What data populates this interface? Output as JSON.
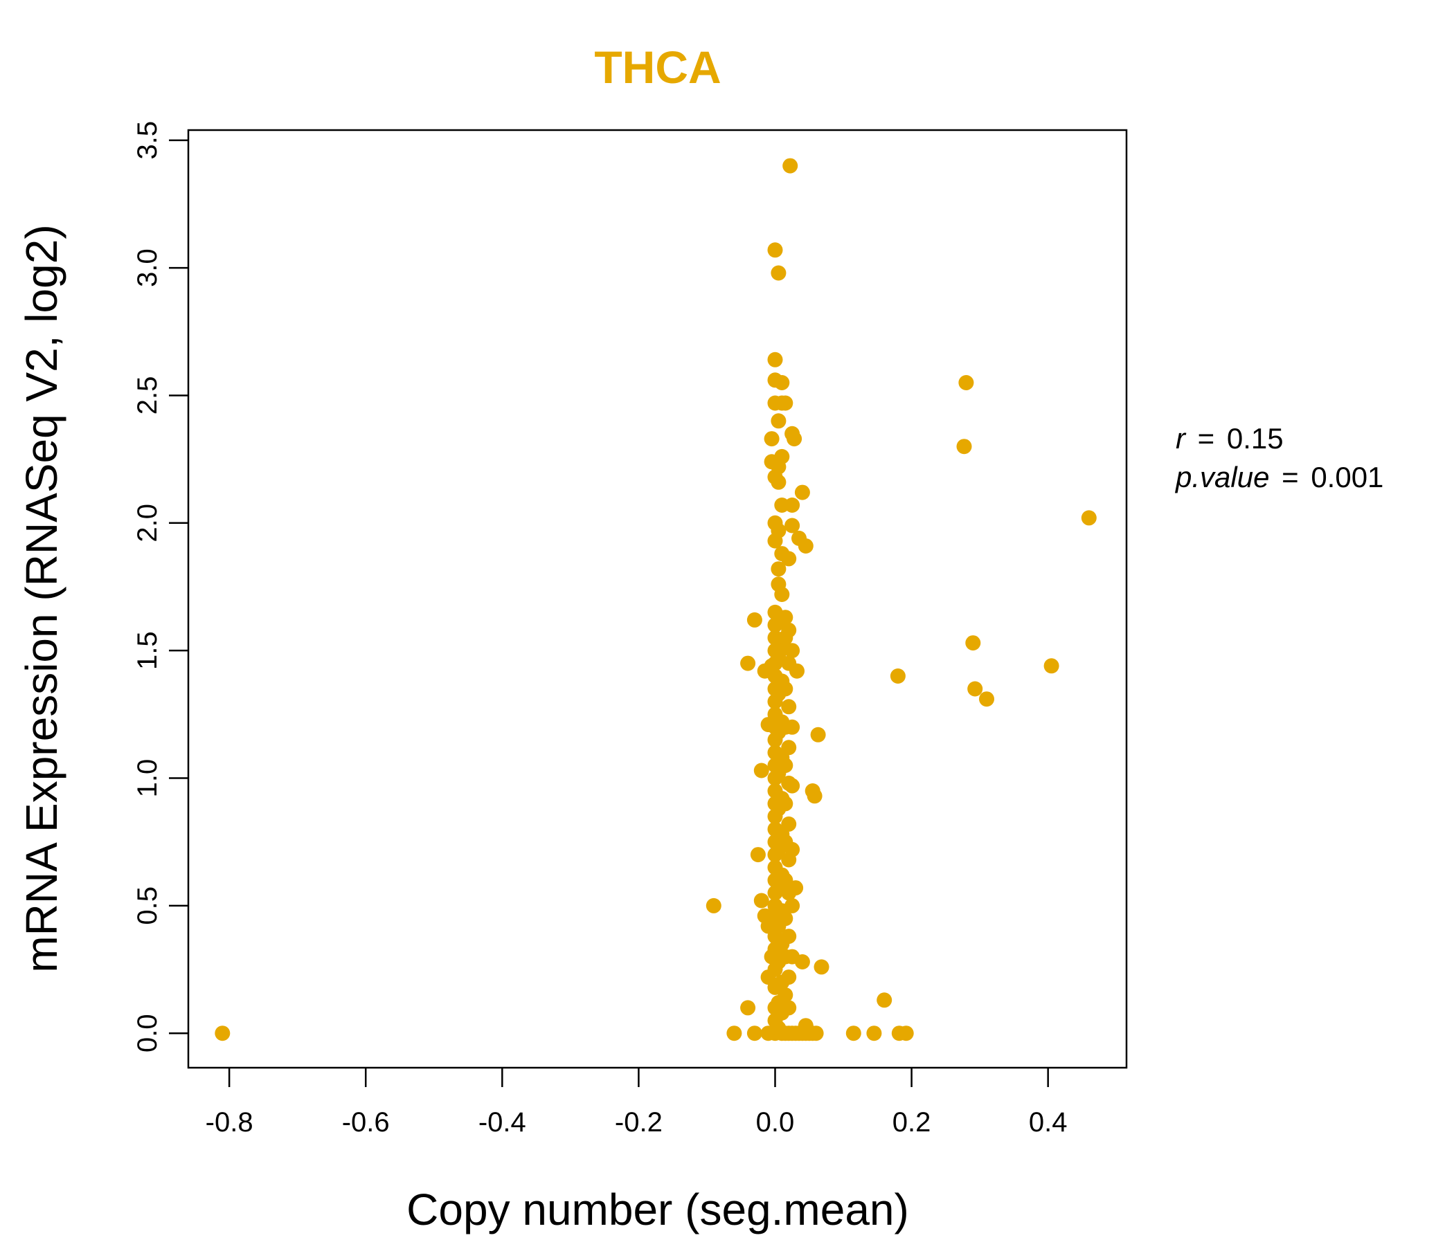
{
  "chart_data": {
    "type": "scatter",
    "title": "THCA",
    "xlabel": "Copy number (seg.mean)",
    "ylabel": "mRNA Expression (RNASeq V2, log2)",
    "xlim": [
      -0.86,
      0.515
    ],
    "ylim": [
      -0.135,
      3.54
    ],
    "xticks": [
      -0.8,
      -0.6,
      -0.4,
      -0.2,
      0.0,
      0.2,
      0.4
    ],
    "xtick_labels": [
      "-0.8",
      "-0.6",
      "-0.4",
      "-0.2",
      "0.0",
      "0.2",
      "0.4"
    ],
    "yticks": [
      0.0,
      0.5,
      1.0,
      1.5,
      2.0,
      2.5,
      3.0,
      3.5
    ],
    "ytick_labels": [
      "0.0",
      "0.5",
      "1.0",
      "1.5",
      "2.0",
      "2.5",
      "3.0",
      "3.5"
    ],
    "grid": false,
    "color": "#E6A800",
    "stats": {
      "r_label": "r",
      "r_value": "0.15",
      "p_label": "p.value",
      "p_value": "0.001"
    },
    "points": [
      {
        "x": -0.81,
        "y": 0.0
      },
      {
        "x": -0.09,
        "y": 0.5
      },
      {
        "x": -0.06,
        "y": 0.0
      },
      {
        "x": -0.04,
        "y": 0.1
      },
      {
        "x": -0.04,
        "y": 1.45
      },
      {
        "x": -0.03,
        "y": 0.0
      },
      {
        "x": -0.03,
        "y": 1.62
      },
      {
        "x": -0.025,
        "y": 0.7
      },
      {
        "x": -0.02,
        "y": 0.52
      },
      {
        "x": -0.02,
        "y": 1.03
      },
      {
        "x": -0.015,
        "y": 1.42
      },
      {
        "x": -0.015,
        "y": 0.46
      },
      {
        "x": -0.01,
        "y": 1.21
      },
      {
        "x": -0.01,
        "y": 0.0
      },
      {
        "x": -0.01,
        "y": 0.42
      },
      {
        "x": -0.01,
        "y": 0.22
      },
      {
        "x": -0.005,
        "y": 0.3
      },
      {
        "x": -0.005,
        "y": 1.44
      },
      {
        "x": -0.005,
        "y": 2.24
      },
      {
        "x": -0.005,
        "y": 2.33
      },
      {
        "x": 0.0,
        "y": 0.0
      },
      {
        "x": 0.0,
        "y": 0.05
      },
      {
        "x": 0.0,
        "y": 0.1
      },
      {
        "x": 0.0,
        "y": 0.18
      },
      {
        "x": 0.0,
        "y": 0.25
      },
      {
        "x": 0.0,
        "y": 0.33
      },
      {
        "x": 0.0,
        "y": 0.38
      },
      {
        "x": 0.0,
        "y": 0.45
      },
      {
        "x": 0.0,
        "y": 0.5
      },
      {
        "x": 0.0,
        "y": 0.55
      },
      {
        "x": 0.0,
        "y": 0.6
      },
      {
        "x": 0.0,
        "y": 0.65
      },
      {
        "x": 0.0,
        "y": 0.7
      },
      {
        "x": 0.0,
        "y": 0.75
      },
      {
        "x": 0.0,
        "y": 0.8
      },
      {
        "x": 0.0,
        "y": 0.85
      },
      {
        "x": 0.0,
        "y": 0.9
      },
      {
        "x": 0.0,
        "y": 0.95
      },
      {
        "x": 0.0,
        "y": 1.0
      },
      {
        "x": 0.0,
        "y": 1.05
      },
      {
        "x": 0.0,
        "y": 1.1
      },
      {
        "x": 0.0,
        "y": 1.15
      },
      {
        "x": 0.0,
        "y": 1.2
      },
      {
        "x": 0.0,
        "y": 1.25
      },
      {
        "x": 0.0,
        "y": 1.3
      },
      {
        "x": 0.0,
        "y": 1.35
      },
      {
        "x": 0.0,
        "y": 1.4
      },
      {
        "x": 0.0,
        "y": 1.45
      },
      {
        "x": 0.0,
        "y": 1.5
      },
      {
        "x": 0.0,
        "y": 1.55
      },
      {
        "x": 0.0,
        "y": 1.6
      },
      {
        "x": 0.0,
        "y": 1.65
      },
      {
        "x": 0.0,
        "y": 1.93
      },
      {
        "x": 0.0,
        "y": 2.0
      },
      {
        "x": 0.0,
        "y": 2.18
      },
      {
        "x": 0.0,
        "y": 2.47
      },
      {
        "x": 0.0,
        "y": 2.56
      },
      {
        "x": 0.0,
        "y": 2.64
      },
      {
        "x": 0.0,
        "y": 3.07
      },
      {
        "x": 0.005,
        "y": 0.02
      },
      {
        "x": 0.005,
        "y": 0.12
      },
      {
        "x": 0.005,
        "y": 0.28
      },
      {
        "x": 0.005,
        "y": 0.42
      },
      {
        "x": 0.005,
        "y": 0.58
      },
      {
        "x": 0.005,
        "y": 0.72
      },
      {
        "x": 0.005,
        "y": 0.88
      },
      {
        "x": 0.005,
        "y": 1.02
      },
      {
        "x": 0.005,
        "y": 1.18
      },
      {
        "x": 0.005,
        "y": 1.33
      },
      {
        "x": 0.005,
        "y": 1.48
      },
      {
        "x": 0.005,
        "y": 1.62
      },
      {
        "x": 0.005,
        "y": 1.76
      },
      {
        "x": 0.005,
        "y": 1.82
      },
      {
        "x": 0.005,
        "y": 1.97
      },
      {
        "x": 0.005,
        "y": 2.16
      },
      {
        "x": 0.005,
        "y": 2.22
      },
      {
        "x": 0.005,
        "y": 2.4
      },
      {
        "x": 0.005,
        "y": 2.98
      },
      {
        "x": 0.01,
        "y": 0.0
      },
      {
        "x": 0.01,
        "y": 0.08
      },
      {
        "x": 0.01,
        "y": 0.2
      },
      {
        "x": 0.01,
        "y": 0.35
      },
      {
        "x": 0.01,
        "y": 0.48
      },
      {
        "x": 0.01,
        "y": 0.62
      },
      {
        "x": 0.01,
        "y": 0.78
      },
      {
        "x": 0.01,
        "y": 0.92
      },
      {
        "x": 0.01,
        "y": 1.08
      },
      {
        "x": 0.01,
        "y": 1.22
      },
      {
        "x": 0.01,
        "y": 1.38
      },
      {
        "x": 0.01,
        "y": 1.52
      },
      {
        "x": 0.01,
        "y": 1.72
      },
      {
        "x": 0.01,
        "y": 1.88
      },
      {
        "x": 0.01,
        "y": 2.07
      },
      {
        "x": 0.01,
        "y": 2.26
      },
      {
        "x": 0.01,
        "y": 2.47
      },
      {
        "x": 0.01,
        "y": 2.55
      },
      {
        "x": 0.015,
        "y": 0.0
      },
      {
        "x": 0.015,
        "y": 0.15
      },
      {
        "x": 0.015,
        "y": 0.3
      },
      {
        "x": 0.015,
        "y": 0.45
      },
      {
        "x": 0.015,
        "y": 0.6
      },
      {
        "x": 0.015,
        "y": 0.75
      },
      {
        "x": 0.015,
        "y": 0.9
      },
      {
        "x": 0.015,
        "y": 1.05
      },
      {
        "x": 0.015,
        "y": 1.2
      },
      {
        "x": 0.015,
        "y": 1.35
      },
      {
        "x": 0.015,
        "y": 1.55
      },
      {
        "x": 0.015,
        "y": 1.63
      },
      {
        "x": 0.015,
        "y": 2.47
      },
      {
        "x": 0.02,
        "y": 0.0
      },
      {
        "x": 0.02,
        "y": 0.1
      },
      {
        "x": 0.02,
        "y": 0.22
      },
      {
        "x": 0.02,
        "y": 0.38
      },
      {
        "x": 0.02,
        "y": 0.55
      },
      {
        "x": 0.02,
        "y": 0.68
      },
      {
        "x": 0.02,
        "y": 0.82
      },
      {
        "x": 0.02,
        "y": 0.98
      },
      {
        "x": 0.02,
        "y": 1.12
      },
      {
        "x": 0.02,
        "y": 1.28
      },
      {
        "x": 0.02,
        "y": 1.45
      },
      {
        "x": 0.02,
        "y": 1.58
      },
      {
        "x": 0.02,
        "y": 1.86
      },
      {
        "x": 0.022,
        "y": 3.4
      },
      {
        "x": 0.025,
        "y": 0.0
      },
      {
        "x": 0.025,
        "y": 0.3
      },
      {
        "x": 0.025,
        "y": 0.5
      },
      {
        "x": 0.025,
        "y": 0.72
      },
      {
        "x": 0.025,
        "y": 0.97
      },
      {
        "x": 0.025,
        "y": 1.2
      },
      {
        "x": 0.025,
        "y": 1.5
      },
      {
        "x": 0.025,
        "y": 1.99
      },
      {
        "x": 0.025,
        "y": 2.07
      },
      {
        "x": 0.025,
        "y": 2.35
      },
      {
        "x": 0.028,
        "y": 2.33
      },
      {
        "x": 0.03,
        "y": 0.0
      },
      {
        "x": 0.03,
        "y": 0.57
      },
      {
        "x": 0.032,
        "y": 1.42
      },
      {
        "x": 0.035,
        "y": 1.94
      },
      {
        "x": 0.035,
        "y": 0.0
      },
      {
        "x": 0.04,
        "y": 0.0
      },
      {
        "x": 0.04,
        "y": 0.28
      },
      {
        "x": 0.04,
        "y": 2.12
      },
      {
        "x": 0.045,
        "y": 0.0
      },
      {
        "x": 0.045,
        "y": 0.03
      },
      {
        "x": 0.045,
        "y": 1.91
      },
      {
        "x": 0.05,
        "y": 0.0
      },
      {
        "x": 0.055,
        "y": 0.0
      },
      {
        "x": 0.055,
        "y": 0.95
      },
      {
        "x": 0.058,
        "y": 0.93
      },
      {
        "x": 0.06,
        "y": 0.0
      },
      {
        "x": 0.063,
        "y": 1.17
      },
      {
        "x": 0.068,
        "y": 0.26
      },
      {
        "x": 0.115,
        "y": 0.0
      },
      {
        "x": 0.145,
        "y": 0.0
      },
      {
        "x": 0.16,
        "y": 0.13
      },
      {
        "x": 0.18,
        "y": 1.4
      },
      {
        "x": 0.182,
        "y": 0.0
      },
      {
        "x": 0.192,
        "y": 0.0
      },
      {
        "x": 0.277,
        "y": 2.3
      },
      {
        "x": 0.28,
        "y": 2.55
      },
      {
        "x": 0.29,
        "y": 1.53
      },
      {
        "x": 0.293,
        "y": 1.35
      },
      {
        "x": 0.31,
        "y": 1.31
      },
      {
        "x": 0.405,
        "y": 1.44
      },
      {
        "x": 0.46,
        "y": 2.02
      }
    ]
  }
}
